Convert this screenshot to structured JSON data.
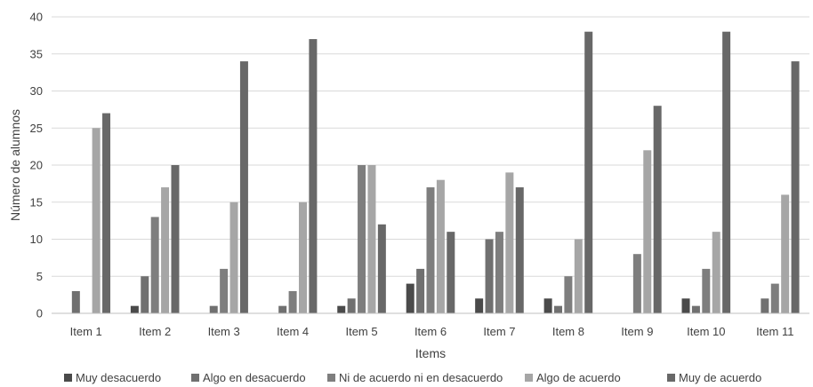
{
  "chart_data": {
    "type": "bar",
    "title": "",
    "xlabel": "Items",
    "ylabel": "Número de alumnos",
    "ylim": [
      0,
      40
    ],
    "ytick_step": 5,
    "grid": true,
    "legend_position": "bottom",
    "categories": [
      "Item 1",
      "Item 2",
      "Item 3",
      "Item 4",
      "Item 5",
      "Item 6",
      "Item 7",
      "Item 8",
      "Item 9",
      "Item 10",
      "Item 11"
    ],
    "series": [
      {
        "name": "Muy desacuerdo",
        "color": "#4a4a4a",
        "values": [
          0,
          1,
          0,
          0,
          1,
          4,
          2,
          2,
          0,
          2,
          0
        ]
      },
      {
        "name": "Algo en desacuerdo",
        "color": "#707070",
        "values": [
          3,
          5,
          1,
          1,
          2,
          6,
          10,
          1,
          0,
          1,
          2
        ]
      },
      {
        "name": "Ni de acuerdo ni en desacuerdo",
        "color": "#7e7e7e",
        "values": [
          0,
          13,
          6,
          3,
          20,
          17,
          11,
          5,
          8,
          6,
          4
        ]
      },
      {
        "name": "Algo de acuerdo",
        "color": "#a6a6a6",
        "values": [
          25,
          17,
          15,
          15,
          20,
          18,
          19,
          10,
          22,
          11,
          16
        ]
      },
      {
        "name": "Muy de acuerdo",
        "color": "#686868",
        "values": [
          27,
          20,
          34,
          37,
          12,
          11,
          17,
          38,
          28,
          38,
          34
        ]
      }
    ]
  }
}
